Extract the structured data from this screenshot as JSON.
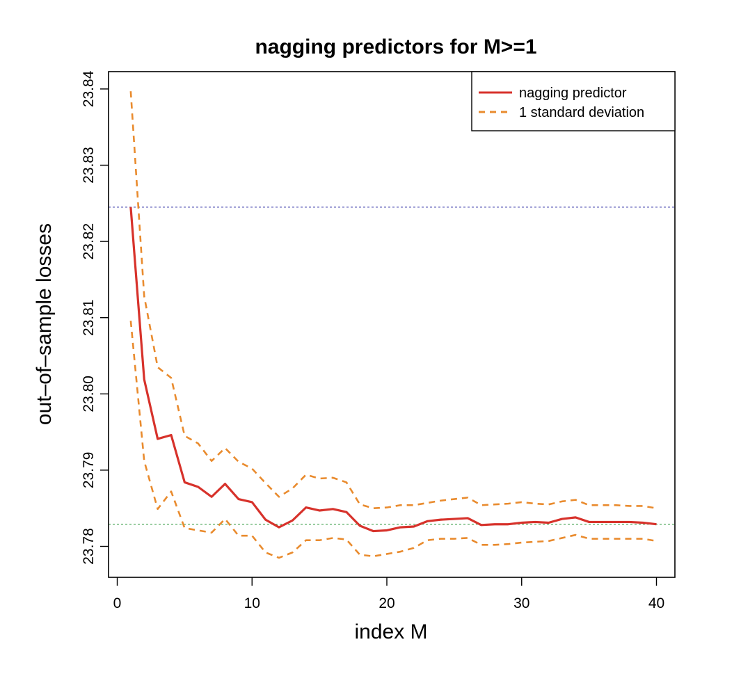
{
  "chart_data": {
    "type": "line",
    "title": "nagging predictors for M>=1",
    "xlabel": "index M",
    "ylabel": "out–of–sample losses",
    "xlim": [
      0,
      40
    ],
    "ylim": [
      23.775,
      23.84
    ],
    "xticks": [
      0,
      10,
      20,
      30,
      40
    ],
    "yticks": [
      23.78,
      23.79,
      23.8,
      23.81,
      23.82,
      23.83,
      23.84
    ],
    "grid": false,
    "legend_position": "top-right",
    "x": [
      1,
      2,
      3,
      4,
      5,
      6,
      7,
      8,
      9,
      10,
      11,
      12,
      13,
      14,
      15,
      16,
      17,
      18,
      19,
      20,
      21,
      22,
      23,
      24,
      25,
      26,
      27,
      28,
      29,
      30,
      31,
      32,
      33,
      34,
      35,
      36,
      37,
      38,
      39,
      40
    ],
    "series": [
      {
        "name": "nagging predictor",
        "color": "#d7322b",
        "style": "solid",
        "values": [
          23.8245,
          23.8019,
          23.7941,
          23.7946,
          23.7884,
          23.7878,
          23.7865,
          23.7882,
          23.7862,
          23.7858,
          23.7835,
          23.7825,
          23.7834,
          23.7851,
          23.7847,
          23.7849,
          23.7845,
          23.7827,
          23.782,
          23.7821,
          23.7825,
          23.7826,
          23.7833,
          23.7835,
          23.7836,
          23.7837,
          23.7828,
          23.7829,
          23.7829,
          23.7831,
          23.7832,
          23.7831,
          23.7836,
          23.7838,
          23.7832,
          23.7832,
          23.7832,
          23.7832,
          23.7831,
          23.7829
        ]
      },
      {
        "name": "1 standard deviation",
        "color": "#e98b2e",
        "style": "dashed",
        "values": [
          23.8397,
          23.8128,
          23.8035,
          23.8021,
          23.7945,
          23.7935,
          23.7912,
          23.7929,
          23.7911,
          23.7902,
          23.7883,
          23.7865,
          23.7876,
          23.7894,
          23.7889,
          23.789,
          23.7884,
          23.7855,
          23.785,
          23.7851,
          23.7854,
          23.7854,
          23.7857,
          23.786,
          23.7862,
          23.7864,
          23.7854,
          23.7855,
          23.7856,
          23.7858,
          23.7856,
          23.7855,
          23.7859,
          23.7861,
          23.7854,
          23.7854,
          23.7854,
          23.7853,
          23.7853,
          23.785
        ]
      },
      {
        "name": "",
        "color": "#e98b2e",
        "style": "dashed",
        "values": [
          23.8096,
          23.7912,
          23.7849,
          23.7872,
          23.7824,
          23.7821,
          23.7818,
          23.7836,
          23.7814,
          23.7814,
          23.7792,
          23.7785,
          23.7792,
          23.7808,
          23.7808,
          23.7811,
          23.7809,
          23.7789,
          23.7787,
          23.779,
          23.7793,
          23.7798,
          23.7808,
          23.781,
          23.781,
          23.7811,
          23.7802,
          23.7802,
          23.7803,
          23.7805,
          23.7806,
          23.7807,
          23.7811,
          23.7815,
          23.781,
          23.781,
          23.781,
          23.781,
          23.781,
          23.7807
        ]
      }
    ],
    "hlines": [
      {
        "y": 23.8245,
        "color": "#3a3aa8",
        "style": "dotted"
      },
      {
        "y": 23.7829,
        "color": "#3fa04a",
        "style": "dotted"
      }
    ]
  }
}
